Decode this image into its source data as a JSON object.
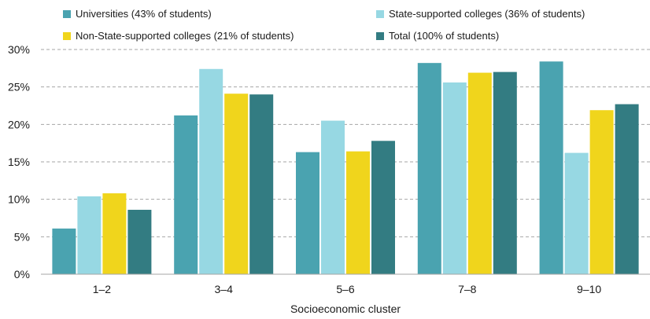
{
  "chart_data": {
    "type": "bar",
    "categories": [
      "1–2",
      "3–4",
      "5–6",
      "7–8",
      "9–10"
    ],
    "series": [
      {
        "name": "Universities (43% of students)",
        "color": "#4aa3b0",
        "values": [
          6.1,
          21.2,
          16.3,
          28.2,
          28.4
        ]
      },
      {
        "name": "State-supported colleges (36% of students)",
        "color": "#97d8e3",
        "values": [
          10.4,
          27.4,
          20.5,
          25.6,
          16.2
        ]
      },
      {
        "name": "Non-State-supported colleges (21% of students)",
        "color": "#f0d51c",
        "values": [
          10.8,
          24.1,
          16.4,
          26.9,
          21.9
        ]
      },
      {
        "name": "Total (100% of students)",
        "color": "#337c82",
        "values": [
          8.6,
          24.0,
          17.8,
          27.0,
          22.7
        ]
      }
    ],
    "xlabel": "Socioeconomic cluster",
    "ylabel": "",
    "ylim": [
      0,
      30
    ],
    "yticks": [
      0,
      5,
      10,
      15,
      20,
      25,
      30
    ],
    "ytick_labels": [
      "0%",
      "5%",
      "10%",
      "15%",
      "20%",
      "25%",
      "30%"
    ],
    "grid": true,
    "legend_position": "top"
  }
}
